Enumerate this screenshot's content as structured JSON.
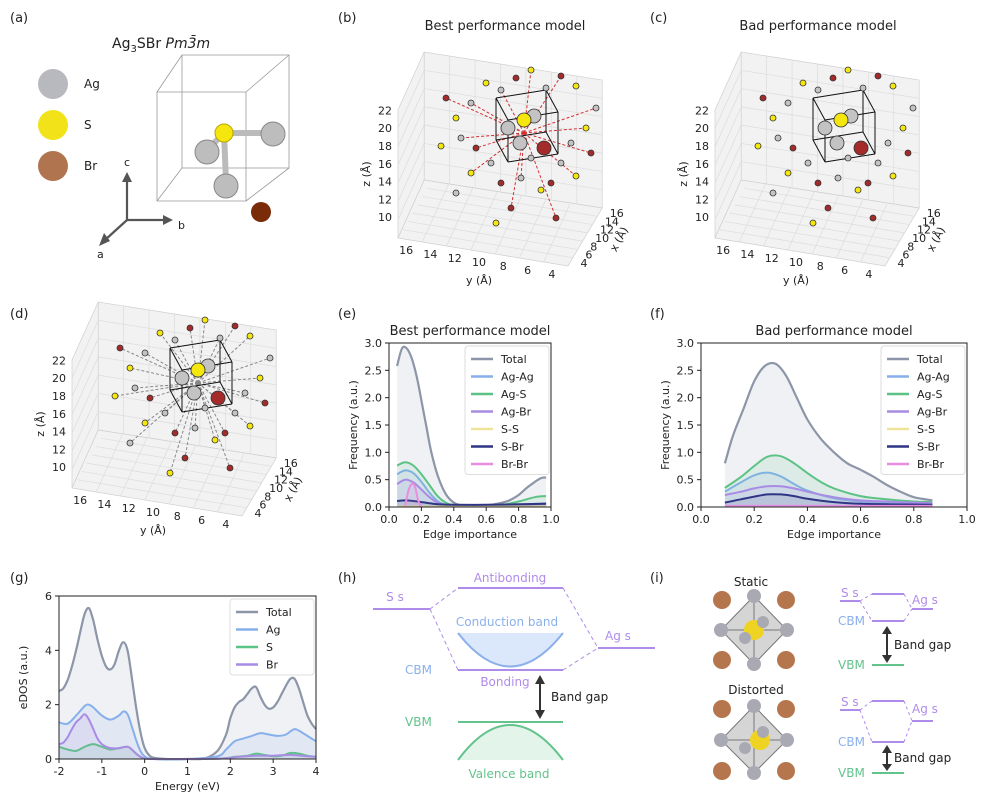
{
  "panel_labels": [
    "(a)",
    "(b)",
    "(c)",
    "(d)",
    "(e)",
    "(f)",
    "(g)",
    "(h)",
    "(i)"
  ],
  "panel_a": {
    "formula_prefix": "Ag",
    "formula_sub": "3",
    "formula_rest": "SBr",
    "space_group": "Pm3̄m",
    "species": [
      {
        "label": "Ag",
        "color": "#b8b8bf"
      },
      {
        "label": "S",
        "color": "#f2e21a"
      },
      {
        "label": "Br",
        "color": "#b0744f"
      }
    ],
    "axes": {
      "c": "c",
      "b": "b",
      "a": "a"
    }
  },
  "panel_b": {
    "title": "Best performance model"
  },
  "panel_c": {
    "title": "Bad performance model"
  },
  "graph3d_axes": {
    "z_label": "z (Å)",
    "y_label": "y (Å)",
    "x_label": "x (Å)",
    "z_ticks": [
      "10",
      "12",
      "14",
      "16",
      "18",
      "20",
      "22"
    ],
    "y_ticks": [
      "16",
      "14",
      "12",
      "10",
      "8",
      "6",
      "4"
    ],
    "x_ticks": [
      "4",
      "6",
      "8",
      "10",
      "12",
      "14",
      "16"
    ]
  },
  "colors": {
    "Total": "#8c96a8",
    "Ag-Ag": "#86b0ec",
    "Ag-S": "#5cc386",
    "Ag-Br": "#a98be6",
    "S-S": "#efe29a",
    "S-Br": "#2f3585",
    "Br-Br": "#e88ee0",
    "ag_atom": "#c3c3c3",
    "s_atom": "#f5e70e",
    "br_atom": "#a52a2a",
    "dos_Ag": "#86b0ec",
    "dos_S": "#5cc386",
    "dos_Br": "#a98be6",
    "purple": "#b08cea",
    "blue": "#8bb0ec",
    "green": "#62c38b"
  },
  "chart_data": [
    {
      "id": "e",
      "type": "line",
      "title": "Best performance model",
      "xlabel": "Edge importance",
      "ylabel": "Frequency (a.u.)",
      "xlim": [
        0.0,
        1.0
      ],
      "ylim": [
        0.0,
        3.0
      ],
      "xticks": [
        "0.0",
        "0.2",
        "0.4",
        "0.6",
        "0.8",
        "1.0"
      ],
      "yticks": [
        "0.0",
        "0.5",
        "1.0",
        "1.5",
        "2.0",
        "2.5",
        "3.0"
      ],
      "legend_position": "top-right",
      "series": [
        {
          "name": "Total",
          "x": [
            0.05,
            0.08,
            0.11,
            0.14,
            0.17,
            0.2,
            0.23,
            0.26,
            0.3,
            0.35,
            0.4,
            0.45,
            0.5,
            0.55,
            0.6,
            0.65,
            0.7,
            0.75,
            0.8,
            0.85,
            0.9,
            0.94,
            0.97
          ],
          "values": [
            2.58,
            2.9,
            2.9,
            2.72,
            2.4,
            1.95,
            1.48,
            1.02,
            0.58,
            0.24,
            0.08,
            0.03,
            0.03,
            0.02,
            0.03,
            0.05,
            0.08,
            0.13,
            0.22,
            0.35,
            0.46,
            0.53,
            0.54
          ]
        },
        {
          "name": "Ag-Ag",
          "x": [
            0.05,
            0.1,
            0.15,
            0.2,
            0.25,
            0.3,
            0.35,
            0.4,
            0.45,
            0.55,
            0.7,
            0.85,
            0.97
          ],
          "values": [
            0.6,
            0.67,
            0.62,
            0.46,
            0.26,
            0.11,
            0.04,
            0.02,
            0.02,
            0.02,
            0.03,
            0.05,
            0.07
          ]
        },
        {
          "name": "Ag-S",
          "x": [
            0.05,
            0.1,
            0.15,
            0.2,
            0.25,
            0.3,
            0.35,
            0.4,
            0.5,
            0.6,
            0.7,
            0.8,
            0.9,
            0.97
          ],
          "values": [
            0.76,
            0.82,
            0.76,
            0.6,
            0.4,
            0.2,
            0.08,
            0.03,
            0.02,
            0.02,
            0.04,
            0.1,
            0.18,
            0.2
          ]
        },
        {
          "name": "Ag-Br",
          "x": [
            0.05,
            0.1,
            0.15,
            0.2,
            0.25,
            0.3,
            0.35,
            0.45,
            0.6,
            0.8,
            0.97
          ],
          "values": [
            0.42,
            0.5,
            0.45,
            0.32,
            0.18,
            0.08,
            0.03,
            0.02,
            0.02,
            0.04,
            0.06
          ]
        },
        {
          "name": "S-S",
          "x": [
            0.05,
            0.3,
            0.6,
            0.97
          ],
          "values": [
            0.01,
            0.01,
            0.01,
            0.01
          ]
        },
        {
          "name": "S-Br",
          "x": [
            0.05,
            0.1,
            0.15,
            0.2,
            0.25,
            0.3,
            0.4,
            0.6,
            0.8,
            0.97
          ],
          "values": [
            0.11,
            0.12,
            0.11,
            0.09,
            0.07,
            0.05,
            0.04,
            0.04,
            0.05,
            0.06
          ]
        },
        {
          "name": "Br-Br",
          "x": [
            0.1,
            0.12,
            0.14,
            0.16,
            0.18,
            0.2
          ],
          "values": [
            0.02,
            0.3,
            0.42,
            0.38,
            0.12,
            0.0
          ]
        }
      ]
    },
    {
      "id": "f",
      "type": "line",
      "title": "Bad performance model",
      "xlabel": "Edge importance",
      "ylabel": "Frequency (a.u.)",
      "xlim": [
        0.0,
        1.0
      ],
      "ylim": [
        0.0,
        3.0
      ],
      "xticks": [
        "0.0",
        "0.2",
        "0.4",
        "0.6",
        "0.8",
        "1.0"
      ],
      "yticks": [
        "0.0",
        "0.5",
        "1.0",
        "1.5",
        "2.0",
        "2.5",
        "3.0"
      ],
      "legend_position": "top-right",
      "series": [
        {
          "name": "Total",
          "x": [
            0.09,
            0.12,
            0.16,
            0.2,
            0.24,
            0.28,
            0.32,
            0.36,
            0.4,
            0.45,
            0.5,
            0.55,
            0.6,
            0.65,
            0.7,
            0.75,
            0.8,
            0.87
          ],
          "values": [
            0.8,
            1.3,
            1.8,
            2.3,
            2.58,
            2.62,
            2.4,
            2.0,
            1.6,
            1.25,
            1.0,
            0.8,
            0.68,
            0.55,
            0.4,
            0.28,
            0.18,
            0.12
          ]
        },
        {
          "name": "Ag-Ag",
          "x": [
            0.09,
            0.15,
            0.2,
            0.25,
            0.3,
            0.35,
            0.4,
            0.5,
            0.6,
            0.7,
            0.8,
            0.87
          ],
          "values": [
            0.28,
            0.45,
            0.58,
            0.63,
            0.56,
            0.42,
            0.3,
            0.16,
            0.1,
            0.08,
            0.06,
            0.05
          ]
        },
        {
          "name": "Ag-S",
          "x": [
            0.09,
            0.15,
            0.2,
            0.25,
            0.3,
            0.35,
            0.4,
            0.45,
            0.5,
            0.6,
            0.7,
            0.8,
            0.87
          ],
          "values": [
            0.35,
            0.55,
            0.75,
            0.92,
            0.93,
            0.8,
            0.62,
            0.46,
            0.34,
            0.2,
            0.14,
            0.1,
            0.09
          ]
        },
        {
          "name": "Ag-Br",
          "x": [
            0.09,
            0.15,
            0.2,
            0.25,
            0.3,
            0.35,
            0.4,
            0.5,
            0.6,
            0.7,
            0.8,
            0.87
          ],
          "values": [
            0.22,
            0.28,
            0.34,
            0.38,
            0.38,
            0.34,
            0.28,
            0.18,
            0.12,
            0.1,
            0.08,
            0.07
          ]
        },
        {
          "name": "S-S",
          "x": [
            0.09,
            0.4,
            0.87
          ],
          "values": [
            0.01,
            0.01,
            0.01
          ]
        },
        {
          "name": "S-Br",
          "x": [
            0.09,
            0.15,
            0.2,
            0.25,
            0.3,
            0.35,
            0.4,
            0.5,
            0.6,
            0.7,
            0.87
          ],
          "values": [
            0.08,
            0.14,
            0.19,
            0.23,
            0.23,
            0.2,
            0.15,
            0.09,
            0.06,
            0.05,
            0.04
          ]
        },
        {
          "name": "Br-Br",
          "x": [
            0.09,
            0.4,
            0.87
          ],
          "values": [
            0.02,
            0.02,
            0.02
          ]
        }
      ]
    },
    {
      "id": "g",
      "type": "line",
      "xlabel": "Energy (eV)",
      "ylabel": "eDOS (a.u.)",
      "xlim": [
        -2,
        4
      ],
      "ylim": [
        0,
        6
      ],
      "xticks": [
        "-2",
        "-1",
        "0",
        "1",
        "2",
        "3",
        "4"
      ],
      "yticks": [
        "0",
        "2",
        "4",
        "6"
      ],
      "legend_position": "top-right",
      "series": [
        {
          "name": "Total",
          "x": [
            -2,
            -1.9,
            -1.8,
            -1.7,
            -1.6,
            -1.5,
            -1.4,
            -1.3,
            -1.2,
            -1.1,
            -1.0,
            -0.9,
            -0.8,
            -0.7,
            -0.6,
            -0.5,
            -0.4,
            -0.3,
            -0.2,
            -0.1,
            0,
            0.1,
            0.2,
            0.5,
            1.0,
            1.4,
            1.7,
            1.9,
            2.0,
            2.1,
            2.2,
            2.3,
            2.4,
            2.5,
            2.6,
            2.7,
            2.8,
            2.9,
            3.0,
            3.1,
            3.2,
            3.3,
            3.4,
            3.5,
            3.6,
            3.7,
            3.8,
            3.9,
            4.0
          ],
          "values": [
            2.5,
            2.6,
            2.9,
            3.4,
            4.0,
            4.7,
            5.35,
            5.55,
            5.1,
            4.4,
            3.8,
            3.4,
            3.3,
            3.5,
            4.0,
            4.3,
            4.0,
            3.0,
            1.9,
            1.0,
            0.4,
            0.15,
            0.05,
            0.0,
            0.0,
            0.02,
            0.3,
            0.9,
            1.5,
            1.9,
            2.1,
            2.2,
            2.4,
            2.6,
            2.65,
            2.3,
            2.0,
            1.85,
            1.9,
            2.1,
            2.4,
            2.7,
            2.95,
            2.95,
            2.6,
            2.1,
            1.6,
            1.3,
            1.1
          ]
        },
        {
          "name": "Ag",
          "x": [
            -2,
            -1.8,
            -1.6,
            -1.4,
            -1.3,
            -1.2,
            -1.0,
            -0.8,
            -0.6,
            -0.5,
            -0.4,
            -0.3,
            -0.2,
            -0.1,
            0,
            0.2,
            1.0,
            1.7,
            1.9,
            2.1,
            2.3,
            2.5,
            2.7,
            2.9,
            3.1,
            3.3,
            3.5,
            3.7,
            3.9,
            4.0
          ],
          "values": [
            1.35,
            1.3,
            1.6,
            1.95,
            2.0,
            1.9,
            1.6,
            1.45,
            1.6,
            1.75,
            1.65,
            1.2,
            0.7,
            0.3,
            0.1,
            0.0,
            0.0,
            0.1,
            0.35,
            0.65,
            0.75,
            0.85,
            0.95,
            0.9,
            0.85,
            0.9,
            1.1,
            0.95,
            0.75,
            0.65
          ]
        },
        {
          "name": "S",
          "x": [
            -2,
            -1.8,
            -1.6,
            -1.4,
            -1.2,
            -1.0,
            -0.8,
            -0.6,
            -0.4,
            -0.3,
            -0.2,
            -0.1,
            0,
            0.2,
            1.0,
            1.8,
            2.1,
            2.4,
            2.6,
            2.8,
            3.0,
            3.2,
            3.4,
            3.6,
            3.8,
            4.0
          ],
          "values": [
            0.45,
            0.35,
            0.3,
            0.45,
            0.55,
            0.45,
            0.35,
            0.4,
            0.45,
            0.35,
            0.2,
            0.08,
            0.02,
            0.0,
            0.0,
            0.02,
            0.08,
            0.12,
            0.2,
            0.15,
            0.1,
            0.12,
            0.22,
            0.2,
            0.12,
            0.08
          ]
        },
        {
          "name": "Br",
          "x": [
            -2,
            -1.9,
            -1.8,
            -1.7,
            -1.6,
            -1.5,
            -1.4,
            -1.3,
            -1.2,
            -1.1,
            -1.0,
            -0.9,
            -0.8,
            -0.6,
            -0.4,
            -0.3,
            -0.2,
            -0.1,
            0,
            0.2,
            1.0,
            1.8,
            2.2,
            2.6,
            3.0,
            3.4,
            3.8,
            4.0
          ],
          "values": [
            0.55,
            0.6,
            0.8,
            1.1,
            1.35,
            1.5,
            1.65,
            1.45,
            1.1,
            0.75,
            0.55,
            0.45,
            0.4,
            0.4,
            0.45,
            0.35,
            0.2,
            0.08,
            0.02,
            0.0,
            0.0,
            0.02,
            0.08,
            0.12,
            0.12,
            0.15,
            0.1,
            0.08
          ]
        }
      ]
    }
  ],
  "panel_h": {
    "antibonding": "Antibonding",
    "s_s": "S s",
    "conduction": "Conduction band",
    "ag_s": "Ag s",
    "cbm": "CBM",
    "bonding": "Bonding",
    "band_gap": "Band gap",
    "vbm": "VBM",
    "valence": "Valence band"
  },
  "panel_i": {
    "static": "Static",
    "distorted": "Distorted",
    "s_s": "S s",
    "ag_s": "Ag s",
    "cbm": "CBM",
    "vbm": "VBM",
    "band_gap": "Band gap"
  }
}
